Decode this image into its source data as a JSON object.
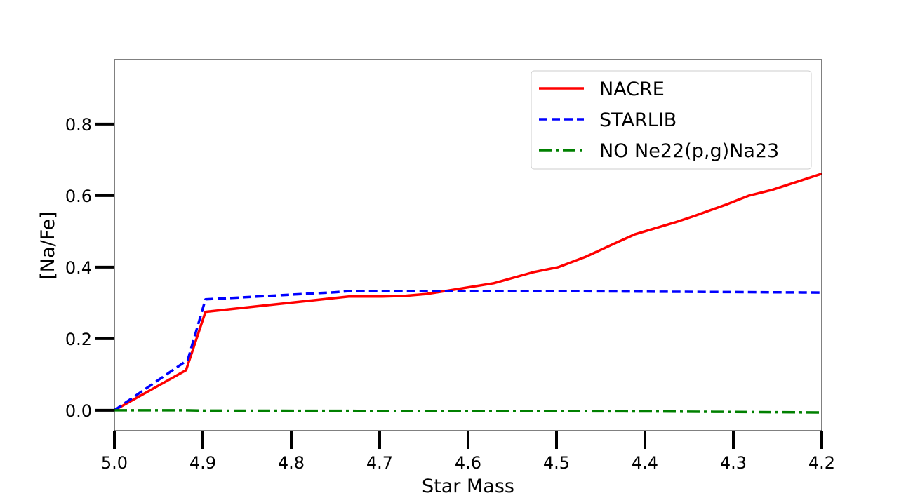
{
  "chart_data": {
    "type": "line",
    "title": "",
    "xlabel": "Star Mass",
    "ylabel": "[Na/Fe]",
    "xlim": [
      5.0,
      4.2
    ],
    "ylim": [
      -0.057,
      0.98
    ],
    "x_inverted": true,
    "grid": false,
    "legend_position": "top-right",
    "xticks": [
      5.0,
      4.9,
      4.8,
      4.7,
      4.6,
      4.5,
      4.4,
      4.3,
      4.2
    ],
    "xtick_labels": [
      "5.0",
      "4.9",
      "4.8",
      "4.7",
      "4.6",
      "4.5",
      "4.4",
      "4.3",
      "4.2"
    ],
    "yticks": [
      0.0,
      0.2,
      0.4,
      0.6,
      0.8
    ],
    "ytick_labels": [
      "0.0",
      "0.2",
      "0.4",
      "0.6",
      "0.8"
    ],
    "series": [
      {
        "name": "NACRE",
        "color": "#ff0000",
        "style": "solid",
        "x": [
          5.0,
          4.919,
          4.897,
          4.735,
          4.697,
          4.671,
          4.647,
          4.621,
          4.571,
          4.526,
          4.498,
          4.467,
          4.439,
          4.411,
          4.366,
          4.344,
          4.308,
          4.282,
          4.256,
          4.2
        ],
        "y": [
          0.0,
          0.112,
          0.275,
          0.318,
          0.318,
          0.32,
          0.325,
          0.335,
          0.355,
          0.386,
          0.4,
          0.429,
          0.461,
          0.492,
          0.525,
          0.543,
          0.575,
          0.6,
          0.616,
          0.661
        ]
      },
      {
        "name": "STARLIB",
        "color": "#0000ff",
        "style": "dashed",
        "x": [
          5.0,
          4.917,
          4.897,
          4.75,
          4.735,
          4.494,
          4.2
        ],
        "y": [
          0.0,
          0.141,
          0.31,
          0.33,
          0.333,
          0.333,
          0.329
        ]
      },
      {
        "name": "NO Ne22(p,g)Na23",
        "color": "#008000",
        "style": "dashdot",
        "x": [
          5.0,
          4.92,
          4.9,
          4.6,
          4.4,
          4.2
        ],
        "y": [
          0.0,
          0.0,
          -0.001,
          -0.002,
          -0.003,
          -0.006
        ]
      }
    ]
  }
}
